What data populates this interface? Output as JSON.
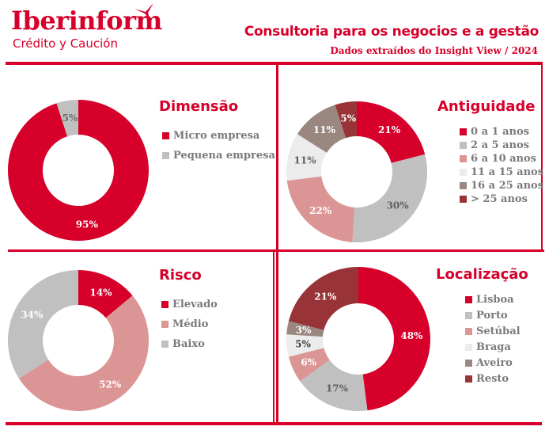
{
  "header": {
    "brand": "Iberinform",
    "brand_sub": "Crédito y Caución",
    "title": "Consultoria para os negocios e a gestão",
    "subtitle": "Dados extraídos do Insight View / 2024",
    "logo_icon": "bird-swoosh-icon"
  },
  "colors": {
    "accent": "#d6002a",
    "text_gray": "#7a7a7a"
  },
  "chart_data": [
    {
      "type": "pie",
      "variant": "donut",
      "title": "Dimensão",
      "categories": [
        "Micro empresa",
        "Pequena empresa"
      ],
      "values": [
        95,
        5
      ],
      "labels": [
        "95%",
        "5%"
      ],
      "colors": [
        "#d6002a",
        "#c0c0c0"
      ],
      "label_colors": [
        "#ffffff",
        "#6b6b6b"
      ],
      "legend": "right"
    },
    {
      "type": "pie",
      "variant": "donut",
      "title": "Antiguidade",
      "categories": [
        "0 a 1 anos",
        "2 a 5 anos",
        "6 a 10 anos",
        "11 a 15 anos",
        "16 a 25 anos",
        "> 25 anos"
      ],
      "values": [
        21,
        30,
        22,
        11,
        11,
        5
      ],
      "labels": [
        "21%",
        "30%",
        "22%",
        "11%",
        "11%",
        "5%"
      ],
      "colors": [
        "#d6002a",
        "#c0c0c0",
        "#dc9595",
        "#ececec",
        "#9a8880",
        "#983438"
      ],
      "label_colors": [
        "#ffffff",
        "#5f5f5f",
        "#ffffff",
        "#5f5f5f",
        "#ffffff",
        "#ffffff"
      ],
      "legend": "right"
    },
    {
      "type": "pie",
      "variant": "donut",
      "title": "Risco",
      "categories": [
        "Elevado",
        "Médio",
        "Baixo"
      ],
      "values": [
        14,
        52,
        34
      ],
      "labels": [
        "14%",
        "52%",
        "34%"
      ],
      "colors": [
        "#d6002a",
        "#dc9595",
        "#c0c0c0"
      ],
      "label_colors": [
        "#ffffff",
        "#ffffff",
        "#ffffff"
      ],
      "legend": "right"
    },
    {
      "type": "pie",
      "variant": "donut",
      "title": "Localização",
      "categories": [
        "Lisboa",
        "Porto",
        "Setúbal",
        "Braga",
        "Aveiro",
        "Resto"
      ],
      "values": [
        48,
        17,
        6,
        5,
        3,
        21
      ],
      "labels": [
        "48%",
        "17%",
        "6%",
        "5%",
        "3%",
        "21%"
      ],
      "colors": [
        "#d6002a",
        "#c0c0c0",
        "#dc9595",
        "#ececec",
        "#9a8880",
        "#983438"
      ],
      "label_colors": [
        "#ffffff",
        "#5f5f5f",
        "#ffffff",
        "#3f3f3f",
        "#ffffff",
        "#ffffff"
      ],
      "legend": "right"
    }
  ]
}
